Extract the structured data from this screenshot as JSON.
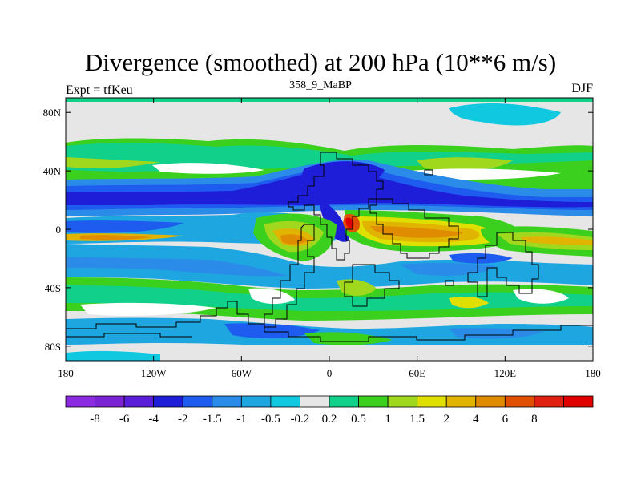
{
  "map": {
    "title": "Divergence (smoothed) at 200 hPa (10**6 m/s)",
    "subtitle": "358_9_MaBP",
    "left_label": "Expt = tfKeu",
    "right_label": "DJF",
    "projection": "cylindrical-equidistant",
    "lon_ticks": [
      "180",
      "120W",
      "60W",
      "0",
      "60E",
      "120E",
      "180"
    ],
    "lat_ticks": [
      "80N",
      "40N",
      "0",
      "40S",
      "80S"
    ],
    "colorbar": {
      "colors": [
        "#8a2be2",
        "#7a22d4",
        "#5a1ed8",
        "#1e1ed8",
        "#1e5cf0",
        "#2a8ce8",
        "#1ea6e0",
        "#10c8e0",
        "#e6e6e6",
        "#10d08a",
        "#3cd01e",
        "#a0d81e",
        "#e0e000",
        "#e0b400",
        "#e08c00",
        "#e05000",
        "#e02010",
        "#e00000"
      ],
      "labels": [
        "-8",
        "-6",
        "-4",
        "-2",
        "-1.5",
        "-1",
        "-0.5",
        "-0.2",
        "0.2",
        "0.5",
        "1",
        "1.5",
        "2",
        "4",
        "6",
        "8"
      ]
    }
  }
}
